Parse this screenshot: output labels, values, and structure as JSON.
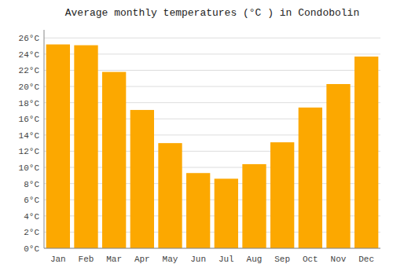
{
  "chart_data": {
    "type": "bar",
    "title": "Average monthly temperatures (°C ) in Condobolin",
    "categories": [
      "Jan",
      "Feb",
      "Mar",
      "Apr",
      "May",
      "Jun",
      "Jul",
      "Aug",
      "Sep",
      "Oct",
      "Nov",
      "Dec"
    ],
    "values": [
      25.2,
      25.1,
      21.8,
      17.1,
      13.0,
      9.3,
      8.6,
      10.4,
      13.1,
      17.4,
      20.3,
      23.7
    ],
    "color": "#FCA800",
    "ylim": [
      0,
      27
    ],
    "yticks": [
      {
        "value": 0,
        "label": "0°C"
      },
      {
        "value": 2,
        "label": "2°C"
      },
      {
        "value": 4,
        "label": "4°C"
      },
      {
        "value": 6,
        "label": "6°C"
      },
      {
        "value": 8,
        "label": "8°C"
      },
      {
        "value": 10,
        "label": "10°C"
      },
      {
        "value": 12,
        "label": "12°C"
      },
      {
        "value": 14,
        "label": "14°C"
      },
      {
        "value": 16,
        "label": "16°C"
      },
      {
        "value": 18,
        "label": "18°C"
      },
      {
        "value": 20,
        "label": "20°C"
      },
      {
        "value": 22,
        "label": "22°C"
      },
      {
        "value": 24,
        "label": "24°C"
      },
      {
        "value": 26,
        "label": "26°C"
      }
    ],
    "grid": true
  }
}
